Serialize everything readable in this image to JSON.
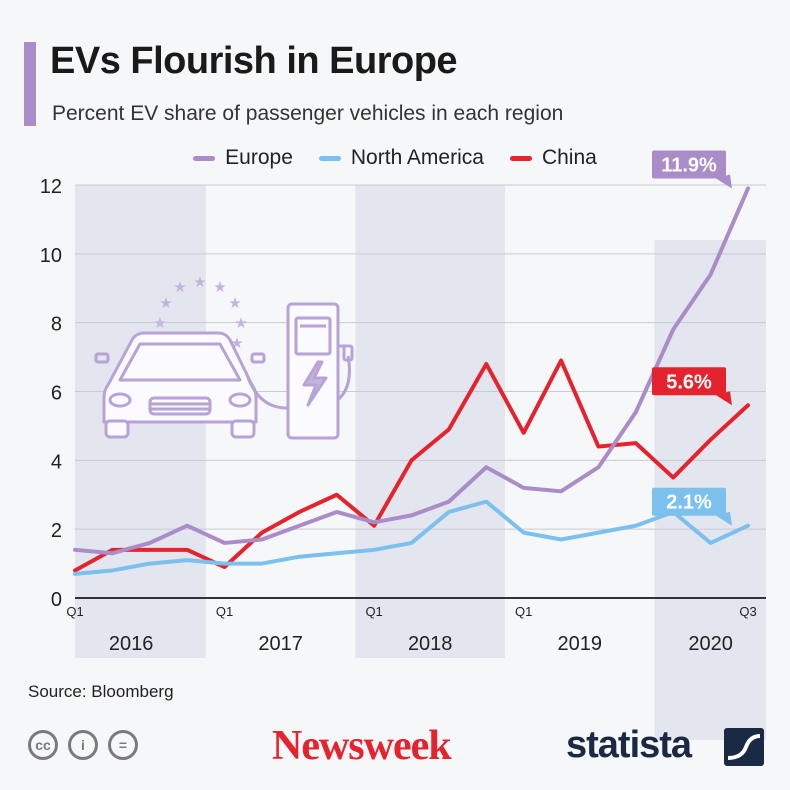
{
  "header": {
    "title": "EVs Flourish in Europe",
    "subtitle": "Percent EV share of passenger vehicles in each region"
  },
  "legend": [
    {
      "label": "Europe",
      "color": "#a98cc8"
    },
    {
      "label": "North America",
      "color": "#7cc0ee"
    },
    {
      "label": "China",
      "color": "#e4232e"
    }
  ],
  "chart_data": {
    "type": "line",
    "title": "EVs Flourish in Europe",
    "subtitle": "Percent EV share of passenger vehicles in each region",
    "ylim": [
      0,
      12
    ],
    "yticks": [
      0,
      2,
      4,
      6,
      8,
      10,
      12
    ],
    "grid": true,
    "legend_position": "top",
    "x": [
      "2016 Q1",
      "2016 Q2",
      "2016 Q3",
      "2016 Q4",
      "2017 Q1",
      "2017 Q2",
      "2017 Q3",
      "2017 Q4",
      "2018 Q1",
      "2018 Q2",
      "2018 Q3",
      "2018 Q4",
      "2019 Q1",
      "2019 Q2",
      "2019 Q3",
      "2019 Q4",
      "2020 Q1",
      "2020 Q2",
      "2020 Q3"
    ],
    "quarter_labels": [
      {
        "index": 0,
        "label": "Q1"
      },
      {
        "index": 4,
        "label": "Q1"
      },
      {
        "index": 8,
        "label": "Q1"
      },
      {
        "index": 12,
        "label": "Q1"
      },
      {
        "index": 18,
        "label": "Q3"
      }
    ],
    "year_labels": [
      {
        "label": "2016",
        "start": 0,
        "end": 3
      },
      {
        "label": "2017",
        "start": 4,
        "end": 7
      },
      {
        "label": "2018",
        "start": 8,
        "end": 11
      },
      {
        "label": "2019",
        "start": 12,
        "end": 15
      },
      {
        "label": "2020",
        "start": 16,
        "end": 18
      }
    ],
    "series": [
      {
        "name": "Europe",
        "color": "#a98cc8",
        "values": [
          1.4,
          1.3,
          1.6,
          2.1,
          1.6,
          1.7,
          2.1,
          2.5,
          2.2,
          2.4,
          2.8,
          3.8,
          3.2,
          3.1,
          3.8,
          5.4,
          7.8,
          9.4,
          11.9
        ]
      },
      {
        "name": "North America",
        "color": "#7cc0ee",
        "values": [
          0.7,
          0.8,
          1.0,
          1.1,
          1.0,
          1.0,
          1.2,
          1.3,
          1.4,
          1.6,
          2.5,
          2.8,
          1.9,
          1.7,
          1.9,
          2.1,
          2.5,
          1.6,
          2.1
        ]
      },
      {
        "name": "China",
        "color": "#e4232e",
        "values": [
          0.8,
          1.4,
          1.4,
          1.4,
          0.9,
          1.9,
          2.5,
          3.0,
          2.1,
          4.0,
          4.9,
          6.8,
          4.8,
          6.9,
          4.4,
          4.5,
          3.5,
          4.6,
          5.6
        ]
      }
    ],
    "end_labels": [
      {
        "series": "Europe",
        "text": "11.9%"
      },
      {
        "series": "China",
        "text": "5.6%"
      },
      {
        "series": "North America",
        "text": "2.1%"
      }
    ]
  },
  "footer": {
    "source": "Source: Bloomberg",
    "cc_icons": [
      "cc-icon",
      "attribution-icon",
      "no-derivatives-icon"
    ],
    "cc_glyphs": [
      "cc",
      "i",
      "="
    ],
    "newsweek": "Newsweek",
    "statista": "statista"
  }
}
